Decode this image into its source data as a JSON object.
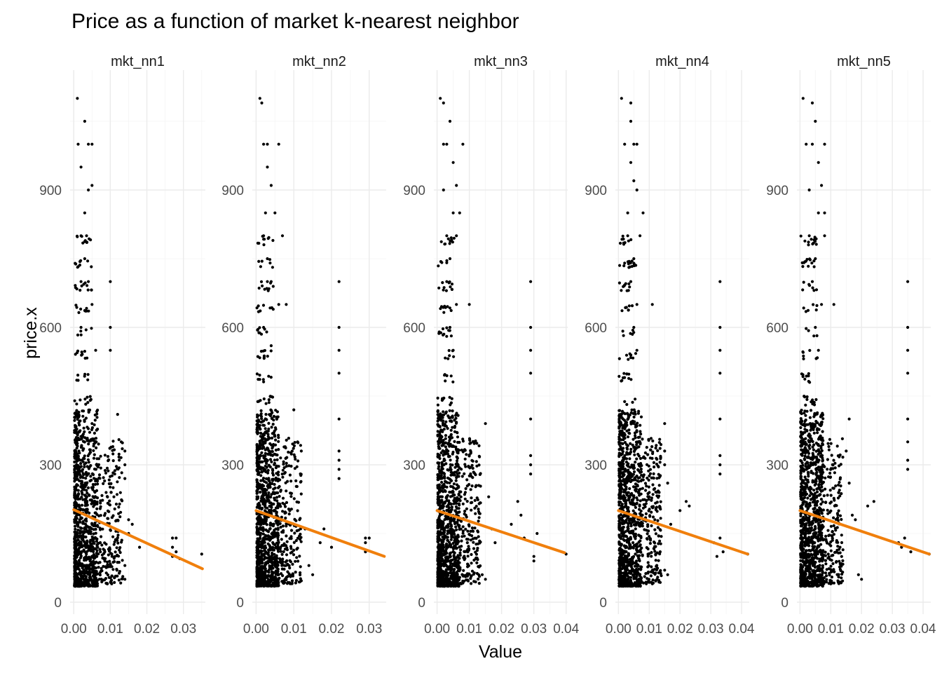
{
  "chart_data": {
    "type": "scatter",
    "title": "Price as a function of market k-nearest neighbor",
    "xlabel": "Value",
    "ylabel": "price.x",
    "grid": true,
    "legend": "none",
    "colors": {
      "points": "#000000",
      "trend": "#f07f0c",
      "grid": "#ebebeb"
    },
    "ylim": [
      0,
      1100
    ],
    "yticks": [
      0,
      300,
      600,
      900
    ],
    "facets": [
      {
        "label": "mkt_nn1",
        "xlim": [
          -0.001,
          0.036
        ],
        "xticks": [
          0.0,
          0.01,
          0.02,
          0.03
        ],
        "xtick_labels": [
          "0.00",
          "0.01",
          "0.02",
          "0.03"
        ],
        "trend": {
          "x": [
            0.0,
            0.0352
          ],
          "y": [
            202,
            73
          ]
        },
        "dense": {
          "xmin": 0.0002,
          "xmax": 0.0065,
          "ymin": 35,
          "ymax": 420,
          "n": 900,
          "peak": 0.002
        },
        "mid": {
          "xmin": 0.005,
          "xmax": 0.0135,
          "ymin": 40,
          "ymax": 360,
          "n": 260
        },
        "sparse": [
          {
            "x": 0.001,
            "y": 1100
          },
          {
            "x": 0.0012,
            "y": 1000
          },
          {
            "x": 0.003,
            "y": 1050
          },
          {
            "x": 0.004,
            "y": 1000
          },
          {
            "x": 0.005,
            "y": 1000
          },
          {
            "x": 0.002,
            "y": 950
          },
          {
            "x": 0.004,
            "y": 900
          },
          {
            "x": 0.005,
            "y": 910
          },
          {
            "x": 0.003,
            "y": 850
          },
          {
            "x": 0.002,
            "y": 800
          },
          {
            "x": 0.0035,
            "y": 800
          },
          {
            "x": 0.003,
            "y": 750
          },
          {
            "x": 0.002,
            "y": 700
          },
          {
            "x": 0.004,
            "y": 700
          },
          {
            "x": 0.005,
            "y": 650
          },
          {
            "x": 0.002,
            "y": 600
          },
          {
            "x": 0.006,
            "y": 550
          },
          {
            "x": 0.01,
            "y": 700
          },
          {
            "x": 0.01,
            "y": 600
          },
          {
            "x": 0.01,
            "y": 550
          },
          {
            "x": 0.012,
            "y": 410
          },
          {
            "x": 0.013,
            "y": 350
          },
          {
            "x": 0.014,
            "y": 330
          },
          {
            "x": 0.014,
            "y": 300
          },
          {
            "x": 0.014,
            "y": 270
          },
          {
            "x": 0.015,
            "y": 180
          },
          {
            "x": 0.015,
            "y": 150
          },
          {
            "x": 0.014,
            "y": 80
          },
          {
            "x": 0.014,
            "y": 50
          },
          {
            "x": 0.016,
            "y": 170
          },
          {
            "x": 0.018,
            "y": 120
          },
          {
            "x": 0.027,
            "y": 140
          },
          {
            "x": 0.027,
            "y": 120
          },
          {
            "x": 0.028,
            "y": 140
          },
          {
            "x": 0.028,
            "y": 110
          },
          {
            "x": 0.027,
            "y": 100
          },
          {
            "x": 0.029,
            "y": 95
          },
          {
            "x": 0.035,
            "y": 105
          }
        ]
      },
      {
        "label": "mkt_nn2",
        "xlim": [
          -0.001,
          0.0345
        ],
        "xticks": [
          0.0,
          0.01,
          0.02,
          0.03
        ],
        "xtick_labels": [
          "0.00",
          "0.01",
          "0.02",
          "0.03"
        ],
        "trend": {
          "x": [
            0.0,
            0.034
          ],
          "y": [
            200,
            100
          ]
        },
        "dense": {
          "xmin": 0.0002,
          "xmax": 0.006,
          "ymin": 35,
          "ymax": 420,
          "n": 950,
          "peak": 0.002
        },
        "mid": {
          "xmin": 0.005,
          "xmax": 0.012,
          "ymin": 40,
          "ymax": 360,
          "n": 240
        },
        "sparse": [
          {
            "x": 0.001,
            "y": 1100
          },
          {
            "x": 0.0015,
            "y": 1090
          },
          {
            "x": 0.002,
            "y": 1000
          },
          {
            "x": 0.003,
            "y": 1000
          },
          {
            "x": 0.006,
            "y": 1000
          },
          {
            "x": 0.003,
            "y": 950
          },
          {
            "x": 0.004,
            "y": 910
          },
          {
            "x": 0.0025,
            "y": 850
          },
          {
            "x": 0.005,
            "y": 850
          },
          {
            "x": 0.002,
            "y": 800
          },
          {
            "x": 0.007,
            "y": 800
          },
          {
            "x": 0.003,
            "y": 750
          },
          {
            "x": 0.003,
            "y": 700
          },
          {
            "x": 0.004,
            "y": 700
          },
          {
            "x": 0.008,
            "y": 650
          },
          {
            "x": 0.006,
            "y": 650
          },
          {
            "x": 0.002,
            "y": 600
          },
          {
            "x": 0.004,
            "y": 560
          },
          {
            "x": 0.01,
            "y": 420
          },
          {
            "x": 0.011,
            "y": 350
          },
          {
            "x": 0.012,
            "y": 330
          },
          {
            "x": 0.013,
            "y": 160
          },
          {
            "x": 0.014,
            "y": 80
          },
          {
            "x": 0.015,
            "y": 60
          },
          {
            "x": 0.017,
            "y": 130
          },
          {
            "x": 0.018,
            "y": 160
          },
          {
            "x": 0.02,
            "y": 120
          },
          {
            "x": 0.022,
            "y": 700
          },
          {
            "x": 0.022,
            "y": 600
          },
          {
            "x": 0.022,
            "y": 550
          },
          {
            "x": 0.022,
            "y": 500
          },
          {
            "x": 0.022,
            "y": 400
          },
          {
            "x": 0.022,
            "y": 330
          },
          {
            "x": 0.022,
            "y": 310
          },
          {
            "x": 0.022,
            "y": 290
          },
          {
            "x": 0.022,
            "y": 270
          },
          {
            "x": 0.029,
            "y": 140
          },
          {
            "x": 0.029,
            "y": 130
          },
          {
            "x": 0.029,
            "y": 110
          },
          {
            "x": 0.03,
            "y": 140
          }
        ]
      },
      {
        "label": "mkt_nn3",
        "xlim": [
          -0.001,
          0.0405
        ],
        "xticks": [
          0.0,
          0.01,
          0.02,
          0.03,
          0.04
        ],
        "xtick_labels": [
          "0.00",
          "0.01",
          "0.02",
          "0.03",
          "0.04"
        ],
        "trend": {
          "x": [
            0.0,
            0.0395
          ],
          "y": [
            200,
            108
          ]
        },
        "dense": {
          "xmin": 0.0002,
          "xmax": 0.007,
          "ymin": 35,
          "ymax": 420,
          "n": 950,
          "peak": 0.002
        },
        "mid": {
          "xmin": 0.006,
          "xmax": 0.0135,
          "ymin": 40,
          "ymax": 360,
          "n": 250
        },
        "sparse": [
          {
            "x": 0.001,
            "y": 1100
          },
          {
            "x": 0.002,
            "y": 1090
          },
          {
            "x": 0.004,
            "y": 1050
          },
          {
            "x": 0.002,
            "y": 1000
          },
          {
            "x": 0.003,
            "y": 1000
          },
          {
            "x": 0.008,
            "y": 1000
          },
          {
            "x": 0.005,
            "y": 960
          },
          {
            "x": 0.006,
            "y": 910
          },
          {
            "x": 0.002,
            "y": 900
          },
          {
            "x": 0.005,
            "y": 850
          },
          {
            "x": 0.007,
            "y": 850
          },
          {
            "x": 0.003,
            "y": 800
          },
          {
            "x": 0.006,
            "y": 800
          },
          {
            "x": 0.004,
            "y": 750
          },
          {
            "x": 0.003,
            "y": 700
          },
          {
            "x": 0.006,
            "y": 650
          },
          {
            "x": 0.01,
            "y": 650
          },
          {
            "x": 0.004,
            "y": 600
          },
          {
            "x": 0.005,
            "y": 550
          },
          {
            "x": 0.015,
            "y": 390
          },
          {
            "x": 0.016,
            "y": 230
          },
          {
            "x": 0.017,
            "y": 160
          },
          {
            "x": 0.018,
            "y": 130
          },
          {
            "x": 0.014,
            "y": 60
          },
          {
            "x": 0.015,
            "y": 50
          },
          {
            "x": 0.023,
            "y": 170
          },
          {
            "x": 0.025,
            "y": 220
          },
          {
            "x": 0.026,
            "y": 190
          },
          {
            "x": 0.029,
            "y": 700
          },
          {
            "x": 0.029,
            "y": 600
          },
          {
            "x": 0.029,
            "y": 550
          },
          {
            "x": 0.029,
            "y": 500
          },
          {
            "x": 0.029,
            "y": 400
          },
          {
            "x": 0.029,
            "y": 320
          },
          {
            "x": 0.029,
            "y": 300
          },
          {
            "x": 0.029,
            "y": 280
          },
          {
            "x": 0.027,
            "y": 140
          },
          {
            "x": 0.031,
            "y": 150
          },
          {
            "x": 0.03,
            "y": 100
          },
          {
            "x": 0.03,
            "y": 90
          },
          {
            "x": 0.04,
            "y": 105
          }
        ]
      },
      {
        "label": "mkt_nn4",
        "xlim": [
          -0.001,
          0.0425
        ],
        "xticks": [
          0.0,
          0.01,
          0.02,
          0.03,
          0.04
        ],
        "xtick_labels": [
          "0.00",
          "0.01",
          "0.02",
          "0.03",
          "0.04"
        ],
        "trend": {
          "x": [
            0.0,
            0.042
          ],
          "y": [
            200,
            105
          ]
        },
        "dense": {
          "xmin": 0.0002,
          "xmax": 0.0075,
          "ymin": 35,
          "ymax": 420,
          "n": 950,
          "peak": 0.002
        },
        "mid": {
          "xmin": 0.006,
          "xmax": 0.014,
          "ymin": 40,
          "ymax": 360,
          "n": 250
        },
        "sparse": [
          {
            "x": 0.001,
            "y": 1100
          },
          {
            "x": 0.004,
            "y": 1090
          },
          {
            "x": 0.004,
            "y": 1050
          },
          {
            "x": 0.002,
            "y": 1000
          },
          {
            "x": 0.005,
            "y": 1000
          },
          {
            "x": 0.006,
            "y": 1000
          },
          {
            "x": 0.004,
            "y": 960
          },
          {
            "x": 0.005,
            "y": 920
          },
          {
            "x": 0.006,
            "y": 900
          },
          {
            "x": 0.003,
            "y": 850
          },
          {
            "x": 0.008,
            "y": 850
          },
          {
            "x": 0.003,
            "y": 800
          },
          {
            "x": 0.007,
            "y": 800
          },
          {
            "x": 0.005,
            "y": 750
          },
          {
            "x": 0.004,
            "y": 700
          },
          {
            "x": 0.006,
            "y": 650
          },
          {
            "x": 0.011,
            "y": 650
          },
          {
            "x": 0.005,
            "y": 600
          },
          {
            "x": 0.006,
            "y": 550
          },
          {
            "x": 0.015,
            "y": 390
          },
          {
            "x": 0.015,
            "y": 330
          },
          {
            "x": 0.015,
            "y": 300
          },
          {
            "x": 0.016,
            "y": 260
          },
          {
            "x": 0.017,
            "y": 170
          },
          {
            "x": 0.015,
            "y": 70
          },
          {
            "x": 0.016,
            "y": 60
          },
          {
            "x": 0.02,
            "y": 200
          },
          {
            "x": 0.022,
            "y": 220
          },
          {
            "x": 0.023,
            "y": 210
          },
          {
            "x": 0.033,
            "y": 700
          },
          {
            "x": 0.033,
            "y": 600
          },
          {
            "x": 0.033,
            "y": 550
          },
          {
            "x": 0.033,
            "y": 500
          },
          {
            "x": 0.033,
            "y": 400
          },
          {
            "x": 0.033,
            "y": 320
          },
          {
            "x": 0.033,
            "y": 300
          },
          {
            "x": 0.033,
            "y": 280
          },
          {
            "x": 0.031,
            "y": 130
          },
          {
            "x": 0.033,
            "y": 140
          },
          {
            "x": 0.032,
            "y": 100
          },
          {
            "x": 0.034,
            "y": 110
          },
          {
            "x": 0.042,
            "y": 105
          }
        ]
      },
      {
        "label": "mkt_nn5",
        "xlim": [
          -0.001,
          0.0425
        ],
        "xticks": [
          0.0,
          0.01,
          0.02,
          0.03,
          0.04
        ],
        "xtick_labels": [
          "0.00",
          "0.01",
          "0.02",
          "0.03",
          "0.04"
        ],
        "trend": {
          "x": [
            0.0,
            0.042
          ],
          "y": [
            200,
            105
          ]
        },
        "dense": {
          "xmin": 0.0002,
          "xmax": 0.0075,
          "ymin": 35,
          "ymax": 420,
          "n": 950,
          "peak": 0.002
        },
        "mid": {
          "xmin": 0.006,
          "xmax": 0.014,
          "ymin": 40,
          "ymax": 360,
          "n": 250
        },
        "sparse": [
          {
            "x": 0.001,
            "y": 1100
          },
          {
            "x": 0.004,
            "y": 1090
          },
          {
            "x": 0.005,
            "y": 1050
          },
          {
            "x": 0.002,
            "y": 1000
          },
          {
            "x": 0.004,
            "y": 1000
          },
          {
            "x": 0.008,
            "y": 1000
          },
          {
            "x": 0.006,
            "y": 960
          },
          {
            "x": 0.007,
            "y": 910
          },
          {
            "x": 0.003,
            "y": 900
          },
          {
            "x": 0.006,
            "y": 850
          },
          {
            "x": 0.008,
            "y": 850
          },
          {
            "x": 0.003,
            "y": 800
          },
          {
            "x": 0.008,
            "y": 800
          },
          {
            "x": 0.005,
            "y": 750
          },
          {
            "x": 0.004,
            "y": 700
          },
          {
            "x": 0.007,
            "y": 650
          },
          {
            "x": 0.011,
            "y": 650
          },
          {
            "x": 0.005,
            "y": 600
          },
          {
            "x": 0.006,
            "y": 550
          },
          {
            "x": 0.016,
            "y": 400
          },
          {
            "x": 0.015,
            "y": 330
          },
          {
            "x": 0.016,
            "y": 260
          },
          {
            "x": 0.017,
            "y": 190
          },
          {
            "x": 0.018,
            "y": 180
          },
          {
            "x": 0.019,
            "y": 60
          },
          {
            "x": 0.02,
            "y": 50
          },
          {
            "x": 0.022,
            "y": 210
          },
          {
            "x": 0.024,
            "y": 220
          },
          {
            "x": 0.035,
            "y": 700
          },
          {
            "x": 0.035,
            "y": 600
          },
          {
            "x": 0.035,
            "y": 550
          },
          {
            "x": 0.035,
            "y": 500
          },
          {
            "x": 0.035,
            "y": 400
          },
          {
            "x": 0.035,
            "y": 350
          },
          {
            "x": 0.035,
            "y": 310
          },
          {
            "x": 0.035,
            "y": 290
          },
          {
            "x": 0.032,
            "y": 130
          },
          {
            "x": 0.034,
            "y": 140
          },
          {
            "x": 0.033,
            "y": 120
          },
          {
            "x": 0.036,
            "y": 110
          },
          {
            "x": 0.042,
            "y": 105
          }
        ]
      }
    ]
  }
}
